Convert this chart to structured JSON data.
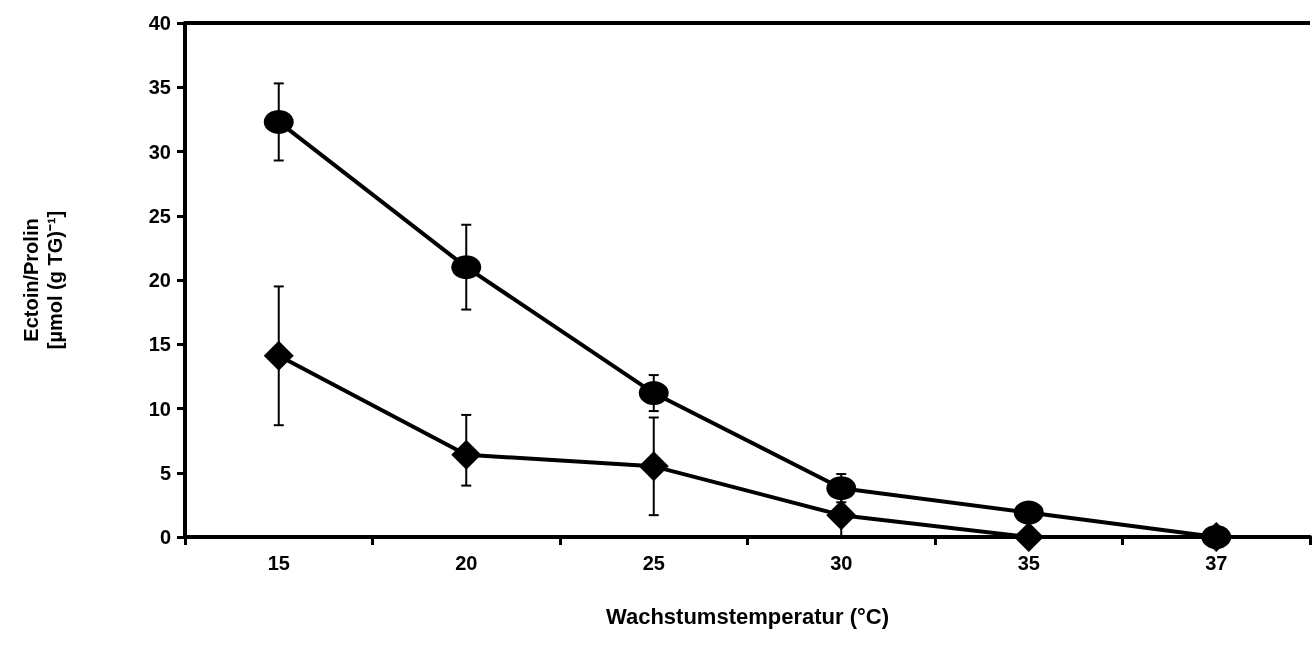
{
  "chart_data": {
    "type": "line",
    "xlabel": "Wachstumstemperatur (°C)",
    "ylabel": "Ectoin/Prolin\n[µmol (g TG)⁻¹]",
    "categories": [
      "15",
      "20",
      "25",
      "30",
      "35",
      "37"
    ],
    "series": [
      {
        "color": "#000000",
        "marker": "circle",
        "values": [
          32.3,
          21.0,
          11.2,
          3.8,
          1.9,
          0
        ],
        "errors": [
          3.0,
          3.3,
          1.4,
          1.1,
          null,
          null
        ]
      },
      {
        "color": "#000000",
        "marker": "diamond",
        "values": [
          14.1,
          6.4,
          5.5,
          1.7,
          0,
          0
        ],
        "errors": [
          5.4,
          [
            4.0,
            9.5
          ],
          3.8,
          1.7,
          null,
          null
        ]
      }
    ],
    "ylim": [
      0,
      40
    ],
    "yticks": [
      0,
      5,
      10,
      15,
      20,
      25,
      30,
      35,
      40
    ],
    "grid": false,
    "line_style": "solid"
  }
}
